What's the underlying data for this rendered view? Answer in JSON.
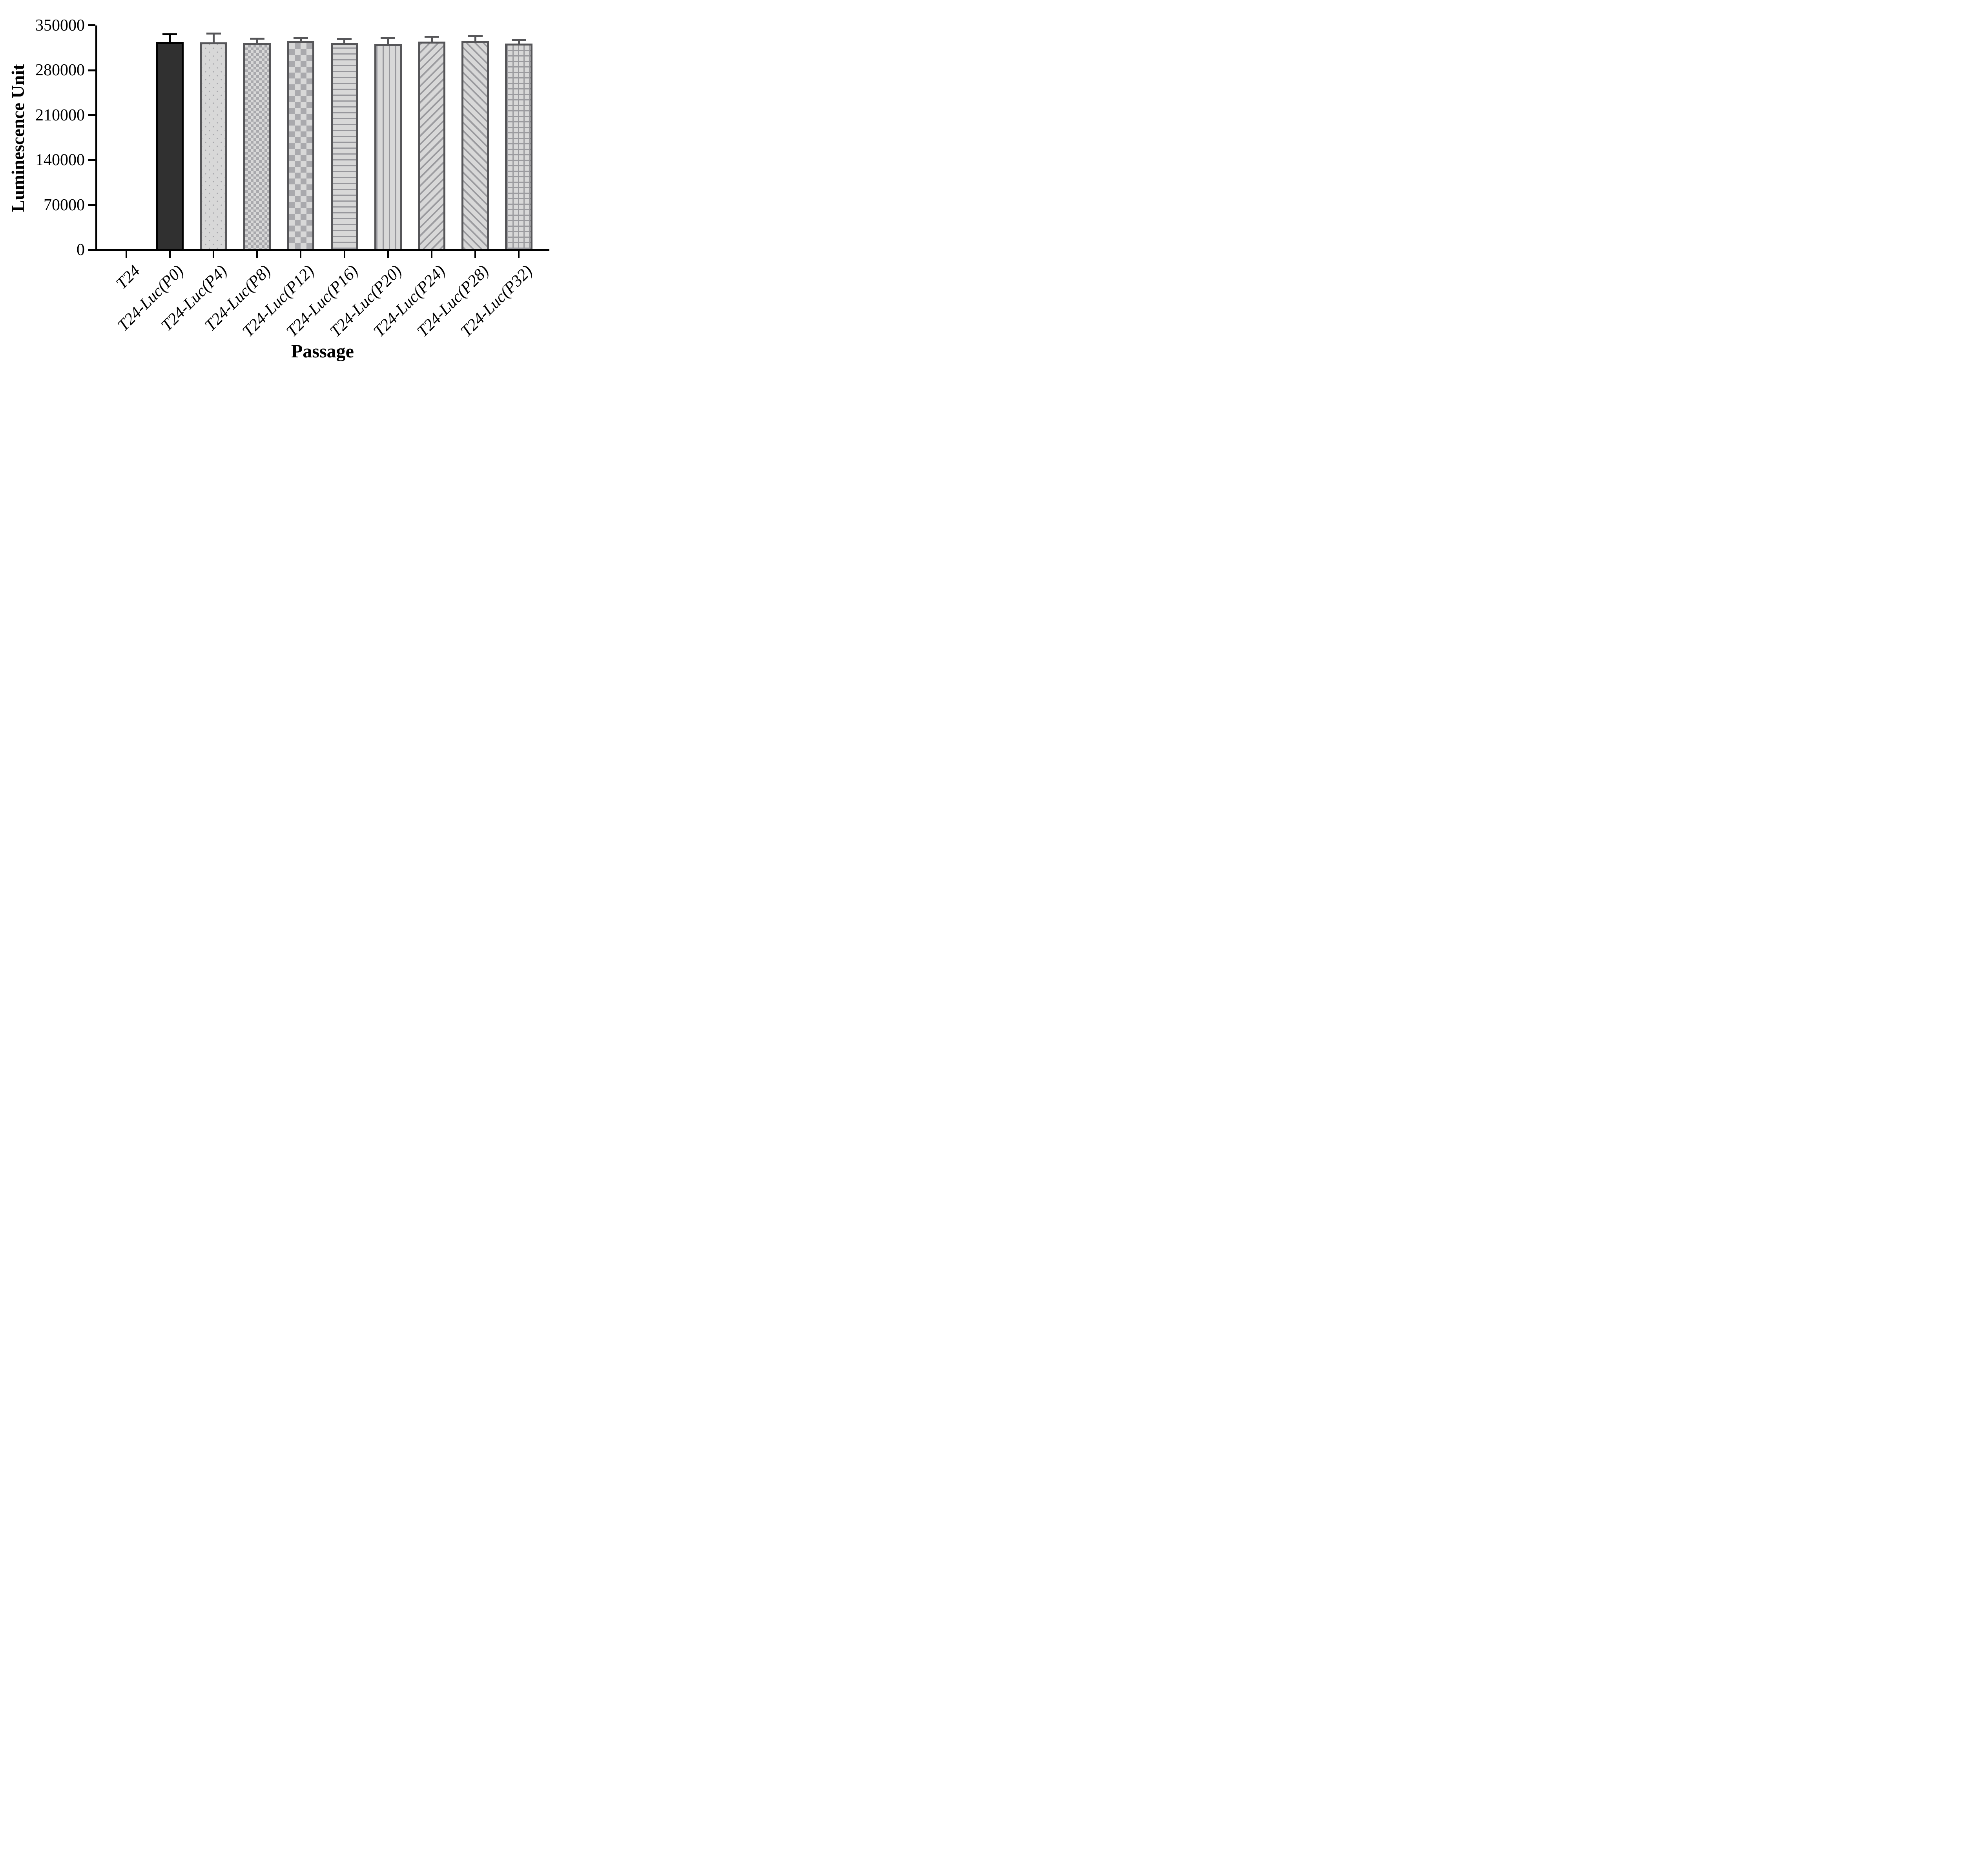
{
  "chart_data": {
    "type": "bar",
    "title": "",
    "xlabel": "Passage",
    "ylabel": "Luminescence Unit",
    "categories": [
      "T24",
      "T24-Luc(P0)",
      "T24-Luc(P4)",
      "T24-Luc(P8)",
      "T24-Luc(P12)",
      "T24-Luc(P16)",
      "T24-Luc(P20)",
      "T24-Luc(P24)",
      "T24-Luc(P28)",
      "T24-Luc(P32)"
    ],
    "values": [
      0,
      324000,
      323500,
      323000,
      325000,
      322500,
      321000,
      324500,
      325000,
      321500
    ],
    "errors": [
      0,
      12000,
      13500,
      6500,
      5000,
      6000,
      9000,
      7500,
      8000,
      6000
    ],
    "error_type": "upper-only",
    "ylim": [
      0,
      350000
    ],
    "yticks": [
      0,
      70000,
      140000,
      210000,
      280000,
      350000
    ],
    "grid": false,
    "legend_position": "none",
    "bar_patterns": [
      "none",
      "solid-dark",
      "dots",
      "checker-small",
      "checker-large",
      "h-lines",
      "v-lines",
      "diag-up",
      "diag-down",
      "grid"
    ]
  },
  "colors": {
    "background": "#ffffff",
    "axis": "#000000",
    "black_bar_fill": "#303030",
    "black_bar_border": "#000000",
    "gray_bar_fill": "#d8d8d8",
    "gray_bar_border": "#565659",
    "stripe_stroke": "#9b9b9f",
    "dot_stroke": "#a7a7ab"
  }
}
